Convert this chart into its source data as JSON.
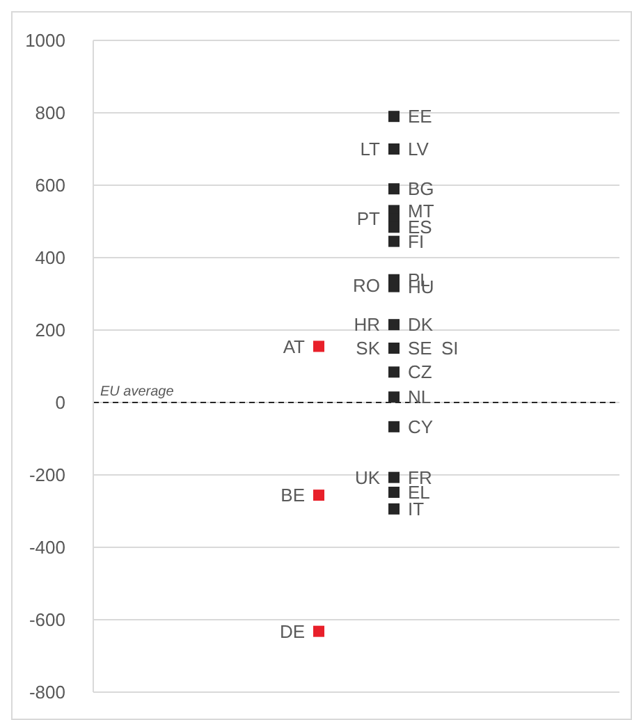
{
  "chart_data": {
    "type": "scatter",
    "categories": [
      null,
      null,
      null,
      null,
      null,
      null,
      null,
      null
    ],
    "ylim": [
      -800,
      1000
    ],
    "yticks": [
      -800,
      -600,
      -400,
      -200,
      0,
      200,
      400,
      600,
      800,
      1000
    ],
    "grid": "y",
    "legend": false,
    "marker": "square",
    "ref_lines": [
      {
        "axis": "y",
        "value": 0,
        "label": "EU average",
        "line_style": "dashed",
        "color": "#262626"
      }
    ],
    "annotations": [
      "LT",
      "RO",
      "HR",
      "SK",
      "SI",
      "UK"
    ],
    "series": [
      {
        "name": "EE",
        "color": "#262626",
        "values": [
          null,
          null,
          null,
          null,
          790,
          null,
          null,
          null
        ]
      },
      {
        "name": "LV",
        "color": "#262626",
        "values": [
          null,
          null,
          null,
          null,
          700,
          null,
          null,
          null
        ]
      },
      {
        "name": "BG",
        "color": "#262626",
        "values": [
          null,
          null,
          null,
          null,
          590,
          null,
          null,
          null
        ]
      },
      {
        "name": "MT",
        "color": "#262626",
        "values": [
          null,
          null,
          null,
          null,
          530,
          null,
          null,
          null
        ]
      },
      {
        "name": "PT",
        "color": "#262626",
        "values": [
          null,
          null,
          null,
          null,
          507,
          null,
          null,
          null
        ]
      },
      {
        "name": "ES",
        "color": "#262626",
        "values": [
          null,
          null,
          null,
          null,
          484,
          null,
          null,
          null
        ]
      },
      {
        "name": "FI",
        "color": "#262626",
        "values": [
          null,
          null,
          null,
          null,
          445,
          null,
          null,
          null
        ]
      },
      {
        "name": "PL",
        "color": "#262626",
        "values": [
          null,
          null,
          null,
          null,
          339,
          null,
          null,
          null
        ]
      },
      {
        "name": "HU",
        "color": "#262626",
        "values": [
          null,
          null,
          null,
          null,
          320,
          null,
          null,
          null
        ]
      },
      {
        "name": "DK",
        "color": "#262626",
        "values": [
          null,
          null,
          null,
          null,
          215,
          null,
          null,
          null
        ]
      },
      {
        "name": "SE",
        "color": "#262626",
        "values": [
          null,
          null,
          null,
          null,
          150,
          null,
          null,
          null
        ]
      },
      {
        "name": "CZ",
        "color": "#262626",
        "values": [
          null,
          null,
          null,
          null,
          84,
          null,
          null,
          null
        ]
      },
      {
        "name": "NL",
        "color": "#262626",
        "values": [
          null,
          null,
          null,
          null,
          15,
          null,
          null,
          null
        ]
      },
      {
        "name": "CY",
        "color": "#262626",
        "values": [
          null,
          null,
          null,
          null,
          -67,
          null,
          null,
          null
        ]
      },
      {
        "name": "FR",
        "color": "#262626",
        "values": [
          null,
          null,
          null,
          null,
          -207,
          null,
          null,
          null
        ]
      },
      {
        "name": "EL",
        "color": "#262626",
        "values": [
          null,
          null,
          null,
          null,
          -248,
          null,
          null,
          null
        ]
      },
      {
        "name": "IT",
        "color": "#262626",
        "values": [
          null,
          null,
          null,
          null,
          -294,
          null,
          null,
          null
        ]
      },
      {
        "name": "AT",
        "color": "#e8202a",
        "values": [
          null,
          null,
          null,
          155,
          null,
          null,
          null,
          null
        ]
      },
      {
        "name": "BE",
        "color": "#e8202a",
        "values": [
          null,
          null,
          null,
          -256,
          null,
          null,
          null,
          null
        ]
      },
      {
        "name": "DE",
        "color": "#e8202a",
        "values": [
          null,
          null,
          null,
          -632,
          null,
          null,
          null,
          null
        ]
      }
    ]
  }
}
